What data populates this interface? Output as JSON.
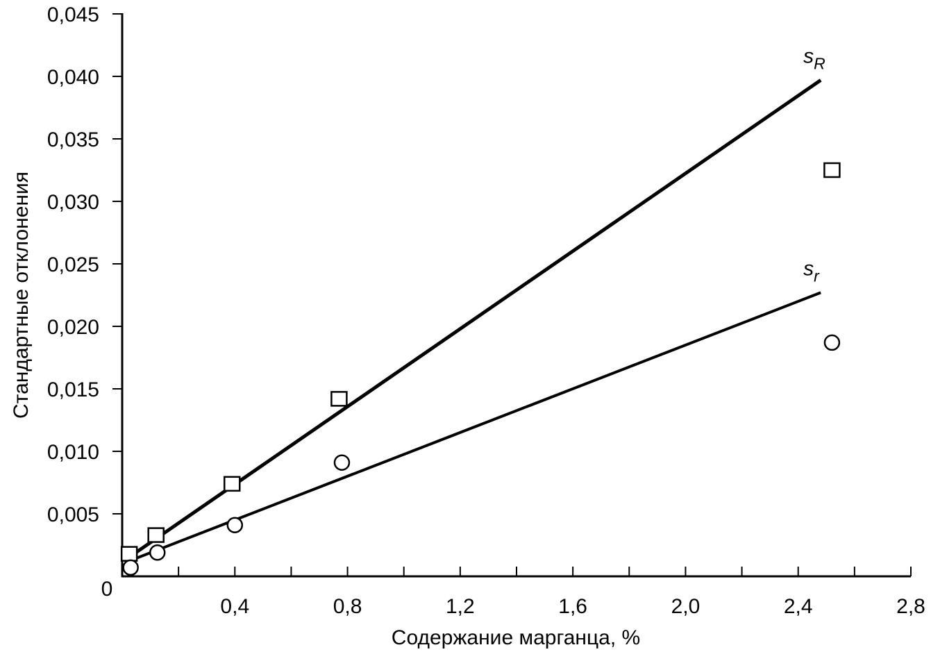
{
  "chart_data": {
    "type": "scatter",
    "title": "",
    "xlabel": "Содержание марганца, %",
    "ylabel": "Стандартные отклонения",
    "xlim": [
      0,
      2.8
    ],
    "ylim": [
      0,
      0.045
    ],
    "x_ticks": [
      {
        "value": 0.2,
        "label": ""
      },
      {
        "value": 0.4,
        "label": "0,4"
      },
      {
        "value": 0.6,
        "label": ""
      },
      {
        "value": 0.8,
        "label": "0,8"
      },
      {
        "value": 1.0,
        "label": ""
      },
      {
        "value": 1.2,
        "label": "1,2"
      },
      {
        "value": 1.4,
        "label": ""
      },
      {
        "value": 1.6,
        "label": "1,6"
      },
      {
        "value": 1.8,
        "label": ""
      },
      {
        "value": 2.0,
        "label": "2,0"
      },
      {
        "value": 2.2,
        "label": ""
      },
      {
        "value": 2.4,
        "label": "2,4"
      },
      {
        "value": 2.6,
        "label": ""
      },
      {
        "value": 2.8,
        "label": "2,8"
      }
    ],
    "y_ticks": [
      {
        "value": 0.005,
        "label": "0,005"
      },
      {
        "value": 0.01,
        "label": "0,010"
      },
      {
        "value": 0.015,
        "label": "0,015"
      },
      {
        "value": 0.02,
        "label": "0,020"
      },
      {
        "value": 0.025,
        "label": "0,025"
      },
      {
        "value": 0.03,
        "label": "0,030"
      },
      {
        "value": 0.035,
        "label": "0,035"
      },
      {
        "value": 0.04,
        "label": "0,040"
      },
      {
        "value": 0.045,
        "label": "0,045"
      }
    ],
    "origin_label": "0",
    "grid": false,
    "series": [
      {
        "label_main": "s",
        "label_sub": "R",
        "marker": "square",
        "points": [
          {
            "x": 0.025,
            "y": 0.0018
          },
          {
            "x": 0.12,
            "y": 0.0033
          },
          {
            "x": 0.39,
            "y": 0.0074
          },
          {
            "x": 0.77,
            "y": 0.0142
          },
          {
            "x": 2.52,
            "y": 0.0325
          }
        ],
        "fit_line": {
          "x": [
            0.01,
            2.48
          ],
          "y": [
            0.0013,
            0.0397
          ]
        },
        "line_width": "thick"
      },
      {
        "label_main": "s",
        "label_sub": "r",
        "marker": "circle",
        "points": [
          {
            "x": 0.03,
            "y": 0.0007
          },
          {
            "x": 0.125,
            "y": 0.0019
          },
          {
            "x": 0.4,
            "y": 0.0041
          },
          {
            "x": 0.78,
            "y": 0.0091
          },
          {
            "x": 2.52,
            "y": 0.0187
          }
        ],
        "fit_line": {
          "x": [
            0.01,
            2.48
          ],
          "y": [
            0.0011,
            0.0227
          ]
        },
        "line_width": "normal"
      }
    ]
  }
}
